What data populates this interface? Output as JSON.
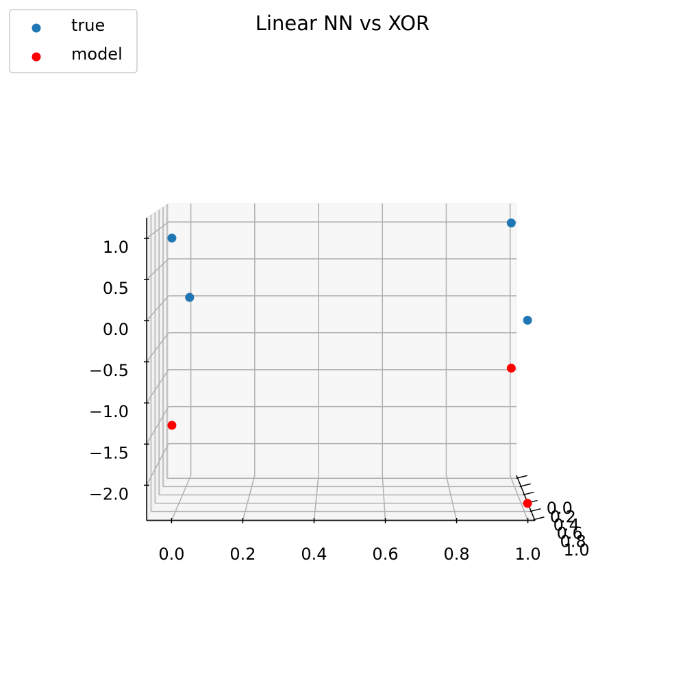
{
  "chart_data": {
    "type": "scatter3d",
    "title": "Linear NN vs XOR",
    "series": [
      {
        "name": "true",
        "color": "#1f77b4",
        "x": [
          0,
          0,
          1,
          1
        ],
        "y": [
          0,
          1,
          0,
          1
        ],
        "values": [
          0,
          1,
          1,
          0
        ]
      },
      {
        "name": "model",
        "color": "#ff0000",
        "x": [
          0,
          0,
          1,
          1
        ],
        "y": [
          0,
          1,
          0,
          1
        ],
        "values": [
          0.0,
          -1.28,
          -0.95,
          -2.23
        ]
      }
    ],
    "xlim": [
      -0.07,
      1.02
    ],
    "ylim": [
      -0.07,
      1.02
    ],
    "zlim": [
      -2.43,
      1.25
    ],
    "xticks": [
      {
        "value": 0,
        "label": "0.0"
      },
      {
        "value": 0.2,
        "label": "0.2"
      },
      {
        "value": 0.4,
        "label": "0.4"
      },
      {
        "value": 0.6,
        "label": "0.6"
      },
      {
        "value": 0.8,
        "label": "0.8"
      },
      {
        "value": 1,
        "label": "1.0"
      }
    ],
    "yticks": [
      {
        "value": 0,
        "label": "0.0"
      },
      {
        "value": 0.2,
        "label": "0.2"
      },
      {
        "value": 0.4,
        "label": "0.4"
      },
      {
        "value": 0.6,
        "label": "0.6"
      },
      {
        "value": 0.8,
        "label": "0.8"
      },
      {
        "value": 1,
        "label": "1.0"
      }
    ],
    "zticks": [
      {
        "value": 1,
        "label": "1.0"
      },
      {
        "value": 0.5,
        "label": "0.5"
      },
      {
        "value": 0,
        "label": "0.0"
      },
      {
        "value": -0.5,
        "label": "−0.5"
      },
      {
        "value": -1,
        "label": "−1.0"
      },
      {
        "value": -1.5,
        "label": "−1.5"
      },
      {
        "value": -2,
        "label": "−2.0"
      }
    ],
    "grid": true,
    "legend": "upper left"
  }
}
